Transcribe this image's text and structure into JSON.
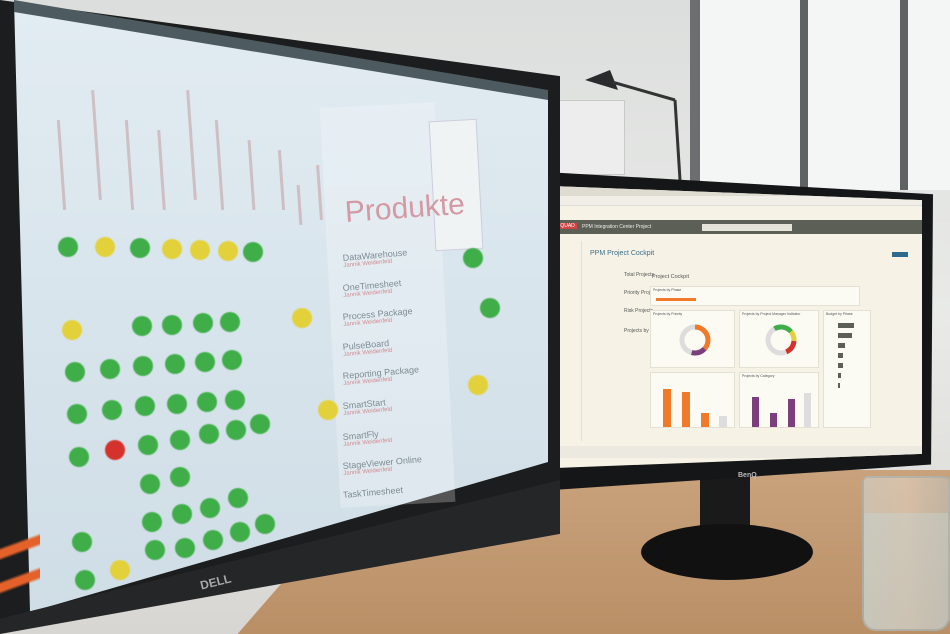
{
  "scene": {
    "colors": {
      "green": "#3fae49",
      "yellow": "#e2d13a",
      "red": "#d6322c",
      "orange": "#f07a2a",
      "purple": "#7b3f7d"
    }
  },
  "left_monitor": {
    "brand": "DELL",
    "heading": "Produkte",
    "products": [
      {
        "name": "DataWarehouse",
        "sub": "Jannik Weidenfeld"
      },
      {
        "name": "OneTimesheet",
        "sub": "Jannik Weidenfeld"
      },
      {
        "name": "Process Package",
        "sub": "Jannik Weidenfeld"
      },
      {
        "name": "PulseBoard",
        "sub": "Jannik Weidenfeld"
      },
      {
        "name": "Reporting Package",
        "sub": "Jannik Weidenfeld"
      },
      {
        "name": "SmartStart",
        "sub": "Jannik Weidenfeld"
      },
      {
        "name": "SmartFly",
        "sub": "Jannik Weidenfeld"
      },
      {
        "name": "StageViewer Online",
        "sub": "Jannik Weidenfeld"
      },
      {
        "name": "TaskTimesheet",
        "sub": ""
      }
    ]
  },
  "right_monitor": {
    "brand": "BenQ",
    "app_title": "PPM Integration Center Project",
    "page_title": "PPM Project Cockpit",
    "section_title": "Project Cockpit",
    "cards": [
      "Projects by Phase",
      "Projects by Priority",
      "Projects by Project Manager Indicator",
      "Projects by Category",
      "Budget by Phase"
    ],
    "left_stats": [
      "Total Projects",
      "Priority Projects",
      "Risk Projects",
      "Projects by Status"
    ]
  }
}
